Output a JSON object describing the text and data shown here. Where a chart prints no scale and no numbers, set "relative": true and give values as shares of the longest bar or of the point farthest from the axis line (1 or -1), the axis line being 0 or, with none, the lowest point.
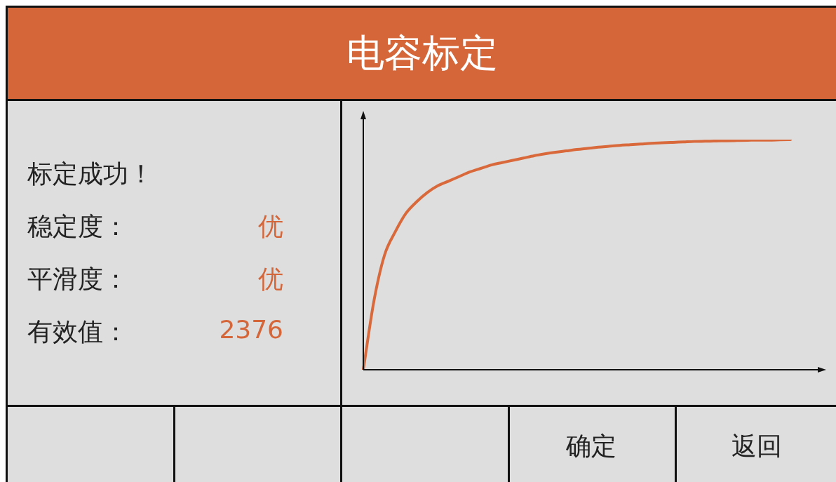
{
  "chart_data": {
    "type": "line",
    "title": "电容标定",
    "relative": true,
    "marker": "none",
    "legend": false,
    "categories": [
      null,
      null,
      null,
      null,
      null,
      null,
      null,
      null,
      null,
      null,
      null,
      null,
      null,
      null,
      null,
      null,
      null,
      null,
      null,
      null,
      null,
      null,
      null,
      null,
      null,
      null,
      null,
      null,
      null,
      null,
      null,
      null,
      null,
      null,
      null,
      null,
      null,
      null,
      null,
      null,
      null
    ],
    "series": [
      {
        "color": "#d9693a",
        "values": [
          0,
          0.3,
          0.5,
          0.6,
          0.68,
          0.73,
          0.77,
          0.8,
          0.82,
          0.84,
          0.86,
          0.875,
          0.89,
          0.9,
          0.91,
          0.92,
          0.93,
          0.938,
          0.945,
          0.951,
          0.957,
          0.962,
          0.967,
          0.971,
          0.975,
          0.978,
          0.981,
          0.984,
          0.986,
          0.988,
          0.99,
          0.992,
          0.993,
          0.994,
          0.995,
          0.996,
          0.997,
          0.998,
          0.998,
          0.999,
          1
        ]
      }
    ],
    "annotations": [
      "标定成功！",
      "稳定度：",
      "优",
      "平滑度：",
      "优",
      "有效值：",
      "2376",
      "确定",
      "返回"
    ]
  }
}
